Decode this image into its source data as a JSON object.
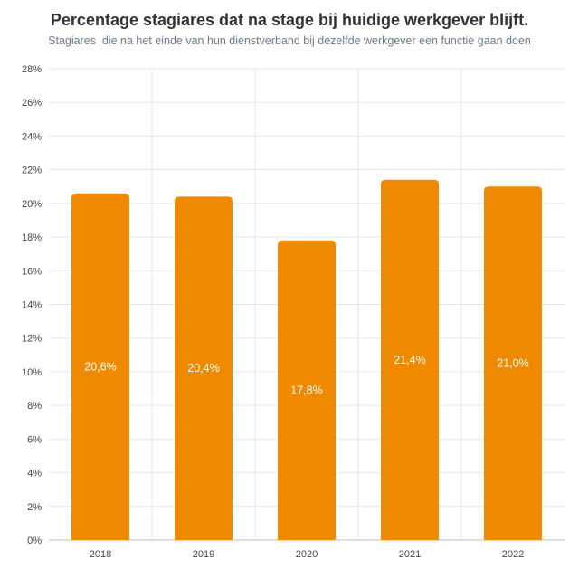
{
  "chart_data": {
    "type": "bar",
    "title": "Percentage stagiares dat na stage bij huidige werkgever blijft.",
    "subtitle": "Stagiares  die na het einde van hun dienstverband bij dezelfde werkgever een functie gaan doen",
    "categories": [
      "2018",
      "2019",
      "2020",
      "2021",
      "2022"
    ],
    "values": [
      20.6,
      20.4,
      17.8,
      21.4,
      21.0
    ],
    "data_labels": [
      "20,6%",
      "20,4%",
      "17,8%",
      "21,4%",
      "21,0%"
    ],
    "xlabel": "",
    "ylabel": "",
    "ylim": [
      0,
      28
    ],
    "yticks": [
      0,
      2,
      4,
      6,
      8,
      10,
      12,
      14,
      16,
      18,
      20,
      22,
      24,
      26,
      28
    ],
    "ytick_labels": [
      "0%",
      "2%",
      "4%",
      "6%",
      "8%",
      "10%",
      "12%",
      "14%",
      "16%",
      "18%",
      "20%",
      "22%",
      "24%",
      "26%",
      "28%"
    ],
    "grid": true,
    "legend": "none",
    "bar_color": "#ef8a00",
    "grid_color": "#e6e6e6"
  }
}
